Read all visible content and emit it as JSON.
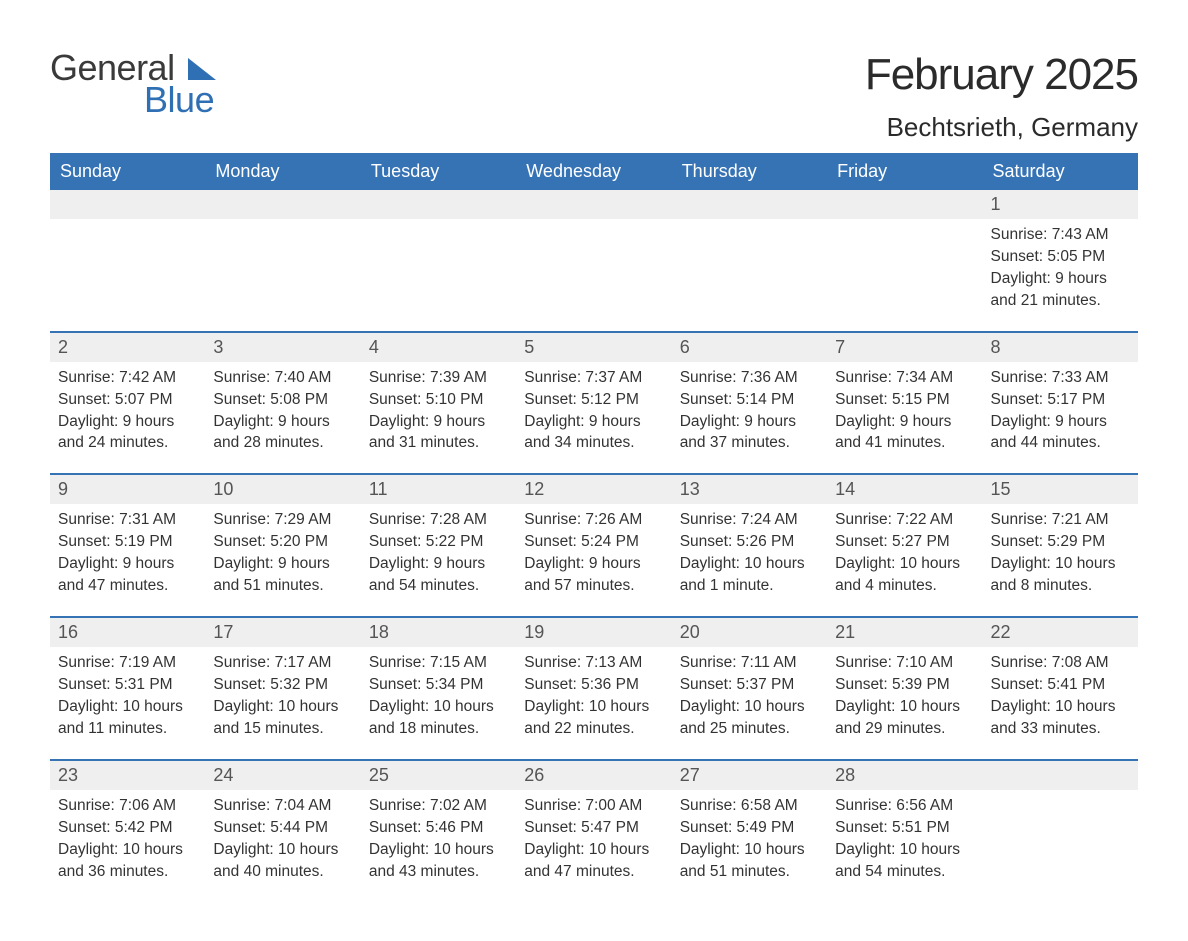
{
  "logo": {
    "general": "General",
    "blue": "Blue",
    "mark_color": "#2f6fb3"
  },
  "title": "February 2025",
  "location": "Bechtsrieth, Germany",
  "colors": {
    "header_bg": "#3673b5",
    "header_text": "#ffffff",
    "daynum_bg": "#efefef",
    "daynum_text": "#555555",
    "row_border": "#3673b5",
    "body_text": "#333333",
    "title_text": "#2b2b2b",
    "page_bg": "#ffffff"
  },
  "typography": {
    "title_fontsize": 44,
    "location_fontsize": 26,
    "header_fontsize": 18,
    "daynum_fontsize": 18,
    "detail_fontsize": 15.5,
    "font_family": "Helvetica Neue, Arial, sans-serif"
  },
  "weekdays": [
    "Sunday",
    "Monday",
    "Tuesday",
    "Wednesday",
    "Thursday",
    "Friday",
    "Saturday"
  ],
  "weeks": [
    [
      null,
      null,
      null,
      null,
      null,
      null,
      {
        "day": "1",
        "sunrise": "Sunrise: 7:43 AM",
        "sunset": "Sunset: 5:05 PM",
        "daylight1": "Daylight: 9 hours",
        "daylight2": "and 21 minutes."
      }
    ],
    [
      {
        "day": "2",
        "sunrise": "Sunrise: 7:42 AM",
        "sunset": "Sunset: 5:07 PM",
        "daylight1": "Daylight: 9 hours",
        "daylight2": "and 24 minutes."
      },
      {
        "day": "3",
        "sunrise": "Sunrise: 7:40 AM",
        "sunset": "Sunset: 5:08 PM",
        "daylight1": "Daylight: 9 hours",
        "daylight2": "and 28 minutes."
      },
      {
        "day": "4",
        "sunrise": "Sunrise: 7:39 AM",
        "sunset": "Sunset: 5:10 PM",
        "daylight1": "Daylight: 9 hours",
        "daylight2": "and 31 minutes."
      },
      {
        "day": "5",
        "sunrise": "Sunrise: 7:37 AM",
        "sunset": "Sunset: 5:12 PM",
        "daylight1": "Daylight: 9 hours",
        "daylight2": "and 34 minutes."
      },
      {
        "day": "6",
        "sunrise": "Sunrise: 7:36 AM",
        "sunset": "Sunset: 5:14 PM",
        "daylight1": "Daylight: 9 hours",
        "daylight2": "and 37 minutes."
      },
      {
        "day": "7",
        "sunrise": "Sunrise: 7:34 AM",
        "sunset": "Sunset: 5:15 PM",
        "daylight1": "Daylight: 9 hours",
        "daylight2": "and 41 minutes."
      },
      {
        "day": "8",
        "sunrise": "Sunrise: 7:33 AM",
        "sunset": "Sunset: 5:17 PM",
        "daylight1": "Daylight: 9 hours",
        "daylight2": "and 44 minutes."
      }
    ],
    [
      {
        "day": "9",
        "sunrise": "Sunrise: 7:31 AM",
        "sunset": "Sunset: 5:19 PM",
        "daylight1": "Daylight: 9 hours",
        "daylight2": "and 47 minutes."
      },
      {
        "day": "10",
        "sunrise": "Sunrise: 7:29 AM",
        "sunset": "Sunset: 5:20 PM",
        "daylight1": "Daylight: 9 hours",
        "daylight2": "and 51 minutes."
      },
      {
        "day": "11",
        "sunrise": "Sunrise: 7:28 AM",
        "sunset": "Sunset: 5:22 PM",
        "daylight1": "Daylight: 9 hours",
        "daylight2": "and 54 minutes."
      },
      {
        "day": "12",
        "sunrise": "Sunrise: 7:26 AM",
        "sunset": "Sunset: 5:24 PM",
        "daylight1": "Daylight: 9 hours",
        "daylight2": "and 57 minutes."
      },
      {
        "day": "13",
        "sunrise": "Sunrise: 7:24 AM",
        "sunset": "Sunset: 5:26 PM",
        "daylight1": "Daylight: 10 hours",
        "daylight2": "and 1 minute."
      },
      {
        "day": "14",
        "sunrise": "Sunrise: 7:22 AM",
        "sunset": "Sunset: 5:27 PM",
        "daylight1": "Daylight: 10 hours",
        "daylight2": "and 4 minutes."
      },
      {
        "day": "15",
        "sunrise": "Sunrise: 7:21 AM",
        "sunset": "Sunset: 5:29 PM",
        "daylight1": "Daylight: 10 hours",
        "daylight2": "and 8 minutes."
      }
    ],
    [
      {
        "day": "16",
        "sunrise": "Sunrise: 7:19 AM",
        "sunset": "Sunset: 5:31 PM",
        "daylight1": "Daylight: 10 hours",
        "daylight2": "and 11 minutes."
      },
      {
        "day": "17",
        "sunrise": "Sunrise: 7:17 AM",
        "sunset": "Sunset: 5:32 PM",
        "daylight1": "Daylight: 10 hours",
        "daylight2": "and 15 minutes."
      },
      {
        "day": "18",
        "sunrise": "Sunrise: 7:15 AM",
        "sunset": "Sunset: 5:34 PM",
        "daylight1": "Daylight: 10 hours",
        "daylight2": "and 18 minutes."
      },
      {
        "day": "19",
        "sunrise": "Sunrise: 7:13 AM",
        "sunset": "Sunset: 5:36 PM",
        "daylight1": "Daylight: 10 hours",
        "daylight2": "and 22 minutes."
      },
      {
        "day": "20",
        "sunrise": "Sunrise: 7:11 AM",
        "sunset": "Sunset: 5:37 PM",
        "daylight1": "Daylight: 10 hours",
        "daylight2": "and 25 minutes."
      },
      {
        "day": "21",
        "sunrise": "Sunrise: 7:10 AM",
        "sunset": "Sunset: 5:39 PM",
        "daylight1": "Daylight: 10 hours",
        "daylight2": "and 29 minutes."
      },
      {
        "day": "22",
        "sunrise": "Sunrise: 7:08 AM",
        "sunset": "Sunset: 5:41 PM",
        "daylight1": "Daylight: 10 hours",
        "daylight2": "and 33 minutes."
      }
    ],
    [
      {
        "day": "23",
        "sunrise": "Sunrise: 7:06 AM",
        "sunset": "Sunset: 5:42 PM",
        "daylight1": "Daylight: 10 hours",
        "daylight2": "and 36 minutes."
      },
      {
        "day": "24",
        "sunrise": "Sunrise: 7:04 AM",
        "sunset": "Sunset: 5:44 PM",
        "daylight1": "Daylight: 10 hours",
        "daylight2": "and 40 minutes."
      },
      {
        "day": "25",
        "sunrise": "Sunrise: 7:02 AM",
        "sunset": "Sunset: 5:46 PM",
        "daylight1": "Daylight: 10 hours",
        "daylight2": "and 43 minutes."
      },
      {
        "day": "26",
        "sunrise": "Sunrise: 7:00 AM",
        "sunset": "Sunset: 5:47 PM",
        "daylight1": "Daylight: 10 hours",
        "daylight2": "and 47 minutes."
      },
      {
        "day": "27",
        "sunrise": "Sunrise: 6:58 AM",
        "sunset": "Sunset: 5:49 PM",
        "daylight1": "Daylight: 10 hours",
        "daylight2": "and 51 minutes."
      },
      {
        "day": "28",
        "sunrise": "Sunrise: 6:56 AM",
        "sunset": "Sunset: 5:51 PM",
        "daylight1": "Daylight: 10 hours",
        "daylight2": "and 54 minutes."
      },
      null
    ]
  ]
}
